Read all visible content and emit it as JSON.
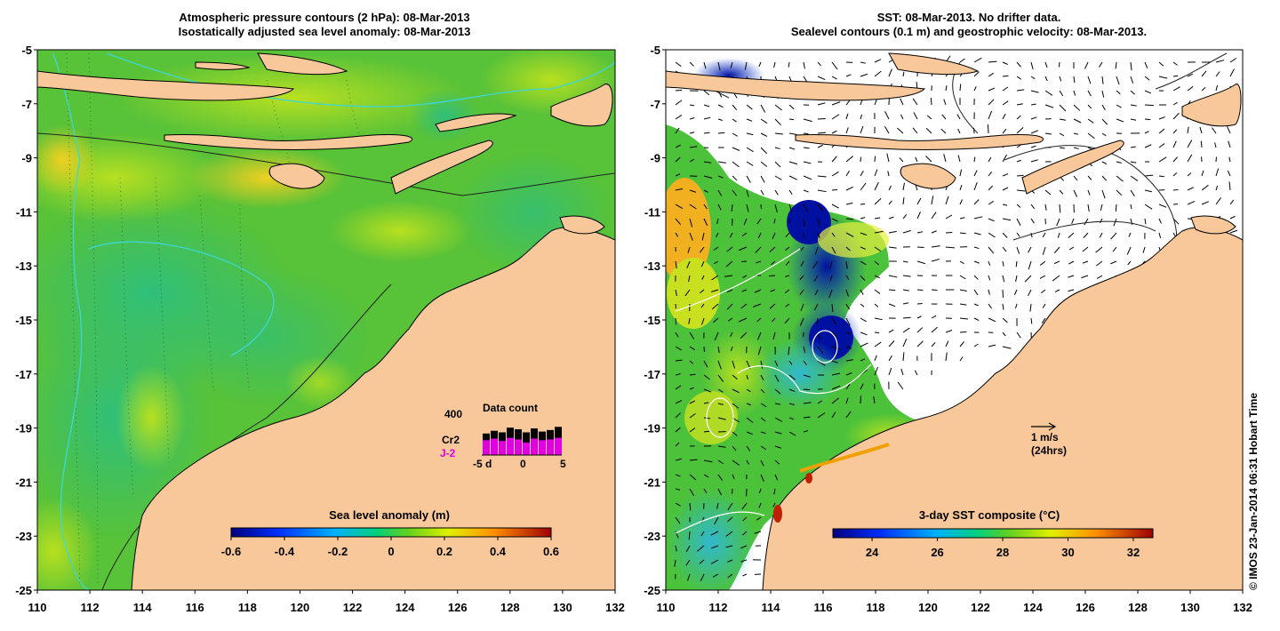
{
  "left_panel": {
    "title_line1": "Atmospheric pressure contours (2 hPa): 08-Mar-2013",
    "title_line2": "Isostatically adjusted sea level anomaly: 08-Mar-2013",
    "colorbar": {
      "title": "Sea level anomaly (m)",
      "ticks": [
        "-0.6",
        "-0.4",
        "-0.2",
        "0",
        "0.2",
        "0.4",
        "0.6"
      ],
      "range": [
        -0.6,
        0.6
      ]
    },
    "data_count": {
      "title": "Data count",
      "y_label": "400",
      "series_black": "Cr2",
      "series_magenta": "J-2",
      "x_ticks": [
        "-5",
        "d",
        "0",
        "5"
      ],
      "black_values": [
        0.55,
        0.62,
        0.58,
        0.7,
        0.66,
        0.58,
        0.68,
        0.6,
        0.64,
        0.72
      ],
      "magenta_values": [
        0.38,
        0.42,
        0.36,
        0.44,
        0.4,
        0.32,
        0.42,
        0.38,
        0.4,
        0.44
      ]
    }
  },
  "right_panel": {
    "title_line1": "SST: 08-Mar-2013. No drifter data.",
    "title_line2": "Sealevel contours (0.1 m) and geostrophic velocity: 08-Mar-2013.",
    "colorbar": {
      "title": "3-day SST composite (°C)",
      "ticks": [
        "24",
        "26",
        "28",
        "30",
        "32"
      ],
      "range": [
        22.8,
        32.6
      ]
    },
    "scale_arrow_label": "1 m/s",
    "scale_arrow_sub": "(24hrs)"
  },
  "axes": {
    "lon_ticks": [
      "110",
      "112",
      "114",
      "116",
      "118",
      "120",
      "122",
      "124",
      "126",
      "128",
      "130",
      "132"
    ],
    "lat_ticks": [
      "-5",
      "-7",
      "-9",
      "-11",
      "-13",
      "-15",
      "-17",
      "-19",
      "-21",
      "-23",
      "-25"
    ],
    "lon_range": [
      110,
      132
    ],
    "lat_range": [
      -25,
      -5
    ]
  },
  "credit": "© IMOS 23-Jan-2014 06:31 Hobart Time",
  "colors": {
    "land": "#f8c89a",
    "ocean_green": "#4dbf3a",
    "cyan_contour": "#3fd6d6"
  }
}
